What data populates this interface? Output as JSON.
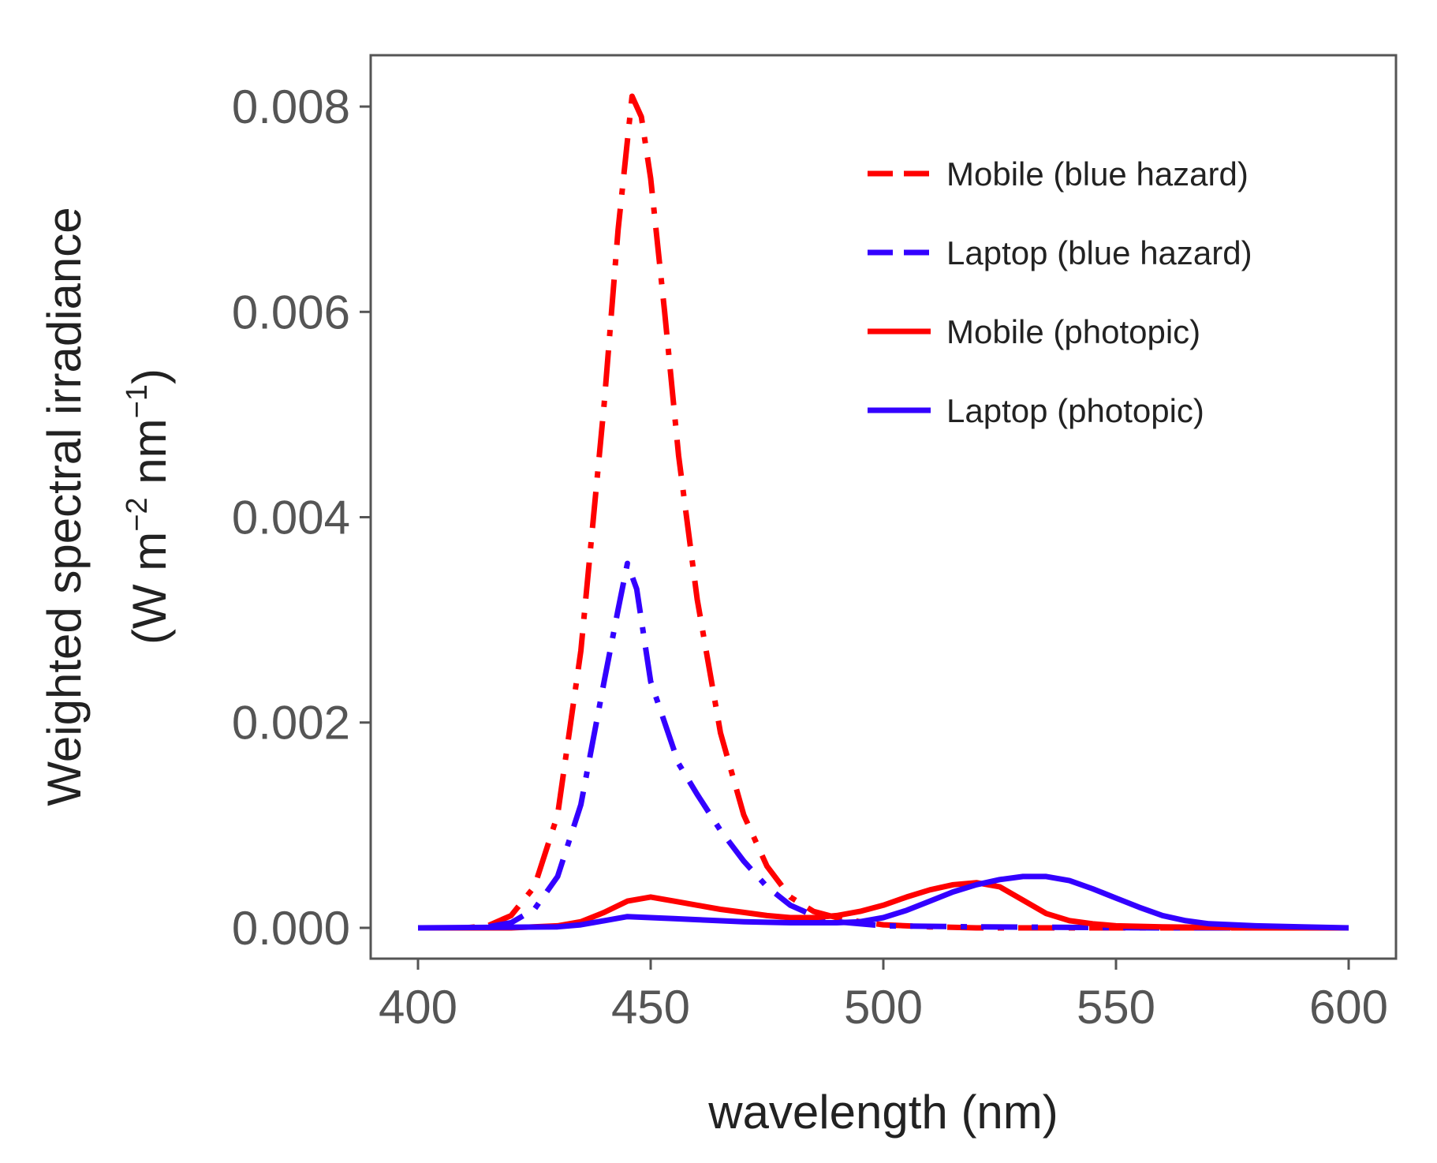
{
  "chart_data": {
    "type": "line",
    "title": "",
    "xlabel": "wavelength (nm)",
    "ylabel_line1": "Weighted spectral irradiance",
    "ylabel_line2_prefix": "(W m",
    "ylabel_line2_sup1": "−2",
    "ylabel_line2_mid": " nm",
    "ylabel_line2_sup2": "−1",
    "ylabel_line2_suffix": ")",
    "xlim": [
      400,
      600
    ],
    "ylim": [
      -0.0003,
      0.0085
    ],
    "xticks": [
      400,
      450,
      500,
      550,
      600
    ],
    "xtick_labels": [
      "400",
      "450",
      "500",
      "550",
      "600"
    ],
    "yticks": [
      0.0,
      0.002,
      0.004,
      0.006,
      0.008
    ],
    "ytick_labels": [
      "0.000",
      "0.002",
      "0.004",
      "0.006",
      "0.008"
    ],
    "legend_position": "top-right",
    "grid": false,
    "series": [
      {
        "name": "Mobile (blue hazard)",
        "color": "#ff0000",
        "style": "dashdot",
        "points": [
          [
            400,
            0
          ],
          [
            405,
            0
          ],
          [
            410,
            0
          ],
          [
            415,
            2e-05
          ],
          [
            420,
            0.00012
          ],
          [
            425,
            0.0004
          ],
          [
            430,
            0.0011
          ],
          [
            435,
            0.0027
          ],
          [
            440,
            0.0051
          ],
          [
            443,
            0.0068
          ],
          [
            446,
            0.0081
          ],
          [
            448,
            0.0079
          ],
          [
            450,
            0.0073
          ],
          [
            453,
            0.006
          ],
          [
            456,
            0.0046
          ],
          [
            460,
            0.0032
          ],
          [
            465,
            0.0019
          ],
          [
            470,
            0.0011
          ],
          [
            475,
            0.0006
          ],
          [
            480,
            0.0003
          ],
          [
            485,
            0.00016
          ],
          [
            490,
            0.0001
          ],
          [
            495,
            6e-05
          ],
          [
            500,
            3e-05
          ],
          [
            510,
            1e-05
          ],
          [
            520,
            0
          ],
          [
            560,
            0
          ],
          [
            600,
            0
          ]
        ]
      },
      {
        "name": "Laptop (blue hazard)",
        "color": "#3300ff",
        "style": "dashdot",
        "points": [
          [
            400,
            0
          ],
          [
            410,
            0
          ],
          [
            415,
            1e-05
          ],
          [
            420,
            5e-05
          ],
          [
            425,
            0.00018
          ],
          [
            430,
            0.0005
          ],
          [
            435,
            0.0012
          ],
          [
            440,
            0.0024
          ],
          [
            443,
            0.0031
          ],
          [
            445,
            0.00355
          ],
          [
            447,
            0.0033
          ],
          [
            450,
            0.0024
          ],
          [
            453,
            0.002
          ],
          [
            456,
            0.0016
          ],
          [
            460,
            0.0013
          ],
          [
            465,
            0.00095
          ],
          [
            470,
            0.00065
          ],
          [
            475,
            0.0004
          ],
          [
            480,
            0.00022
          ],
          [
            485,
            0.00012
          ],
          [
            490,
            6e-05
          ],
          [
            500,
            2e-05
          ],
          [
            520,
            1e-05
          ],
          [
            560,
            0
          ],
          [
            600,
            0
          ]
        ]
      },
      {
        "name": "Mobile (photopic)",
        "color": "#ff0000",
        "style": "solid",
        "points": [
          [
            400,
            0
          ],
          [
            420,
            0
          ],
          [
            430,
            2e-05
          ],
          [
            435,
            6e-05
          ],
          [
            440,
            0.00015
          ],
          [
            445,
            0.00026
          ],
          [
            450,
            0.0003
          ],
          [
            455,
            0.00026
          ],
          [
            460,
            0.00022
          ],
          [
            465,
            0.00018
          ],
          [
            470,
            0.00015
          ],
          [
            475,
            0.00012
          ],
          [
            480,
            0.0001
          ],
          [
            485,
            0.0001
          ],
          [
            490,
            0.00012
          ],
          [
            495,
            0.00016
          ],
          [
            500,
            0.00022
          ],
          [
            505,
            0.0003
          ],
          [
            510,
            0.00037
          ],
          [
            515,
            0.00042
          ],
          [
            520,
            0.00044
          ],
          [
            525,
            0.0004
          ],
          [
            530,
            0.00027
          ],
          [
            535,
            0.00014
          ],
          [
            540,
            7e-05
          ],
          [
            545,
            4e-05
          ],
          [
            550,
            2e-05
          ],
          [
            560,
            1e-05
          ],
          [
            580,
            0
          ],
          [
            600,
            0
          ]
        ]
      },
      {
        "name": "Laptop (photopic)",
        "color": "#3300ff",
        "style": "solid",
        "points": [
          [
            400,
            0
          ],
          [
            430,
            1e-05
          ],
          [
            435,
            3e-05
          ],
          [
            440,
            7e-05
          ],
          [
            445,
            0.00011
          ],
          [
            450,
            0.0001
          ],
          [
            455,
            9e-05
          ],
          [
            460,
            8e-05
          ],
          [
            470,
            6e-05
          ],
          [
            480,
            5e-05
          ],
          [
            490,
            5e-05
          ],
          [
            495,
            6e-05
          ],
          [
            500,
            0.0001
          ],
          [
            505,
            0.00017
          ],
          [
            510,
            0.00026
          ],
          [
            515,
            0.00035
          ],
          [
            520,
            0.00042
          ],
          [
            525,
            0.00047
          ],
          [
            530,
            0.0005
          ],
          [
            535,
            0.0005
          ],
          [
            540,
            0.00046
          ],
          [
            545,
            0.00038
          ],
          [
            550,
            0.00029
          ],
          [
            555,
            0.0002
          ],
          [
            560,
            0.00012
          ],
          [
            565,
            7e-05
          ],
          [
            570,
            4e-05
          ],
          [
            580,
            2e-05
          ],
          [
            590,
            1e-05
          ],
          [
            600,
            0
          ]
        ]
      }
    ]
  }
}
